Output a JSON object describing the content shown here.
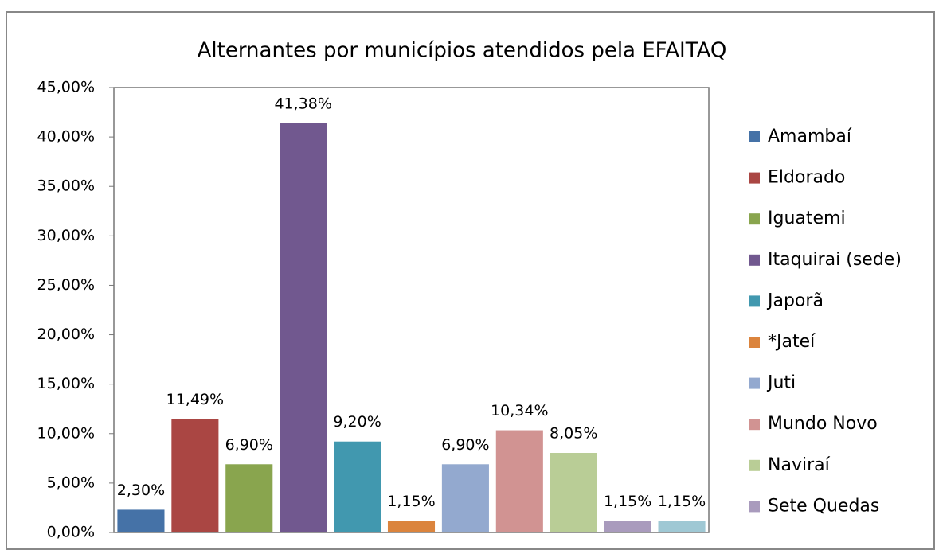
{
  "chart_data": {
    "type": "bar",
    "title": "Alternantes por municípios atendidos pela EFAITAQ",
    "series": [
      {
        "name": "Amambaí",
        "color": "#4572a7",
        "values": [
          2.3
        ],
        "value_labels": [
          "2,30%"
        ]
      },
      {
        "name": "Eldorado",
        "color": "#aa4643",
        "values": [
          11.49
        ],
        "value_labels": [
          "11,49%"
        ]
      },
      {
        "name": "Iguatemi",
        "color": "#89a54e",
        "values": [
          6.9
        ],
        "value_labels": [
          "6,90%"
        ]
      },
      {
        "name": "Itaquirai (sede)",
        "color": "#71588f",
        "values": [
          41.38
        ],
        "value_labels": [
          "41,38%"
        ]
      },
      {
        "name": "Japorã",
        "color": "#4198af",
        "values": [
          9.2
        ],
        "value_labels": [
          "9,20%"
        ]
      },
      {
        "name": "*Jateí",
        "color": "#db843d",
        "values": [
          1.15
        ],
        "value_labels": [
          "1,15%"
        ]
      },
      {
        "name": "Juti",
        "color": "#93a9cf",
        "values": [
          6.9
        ],
        "value_labels": [
          "6,90%"
        ]
      },
      {
        "name": "Mundo Novo",
        "color": "#d19392",
        "values": [
          10.34
        ],
        "value_labels": [
          "10,34%"
        ]
      },
      {
        "name": "Naviraí",
        "color": "#b9cd96",
        "values": [
          8.05
        ],
        "value_labels": [
          "8,05%"
        ]
      },
      {
        "name": "Sete Quedas",
        "color": "#a99bbd",
        "values": [
          1.15
        ],
        "value_labels": [
          "1,15%"
        ]
      },
      {
        "name": null,
        "color": "#9fc8d4",
        "values": [
          1.15
        ],
        "value_labels": [
          "1,15%"
        ]
      }
    ],
    "ylim": [
      0,
      45
    ],
    "yticks": [
      {
        "value": 0,
        "label": "0,00%"
      },
      {
        "value": 5,
        "label": "5,00%"
      },
      {
        "value": 10,
        "label": "10,00%"
      },
      {
        "value": 15,
        "label": "15,00%"
      },
      {
        "value": 20,
        "label": "20,00%"
      },
      {
        "value": 25,
        "label": "25,00%"
      },
      {
        "value": 30,
        "label": "30,00%"
      },
      {
        "value": 35,
        "label": "35,00%"
      },
      {
        "value": 40,
        "label": "40,00%"
      },
      {
        "value": 45,
        "label": "45,00%"
      }
    ],
    "grid": false,
    "legend": "right"
  }
}
